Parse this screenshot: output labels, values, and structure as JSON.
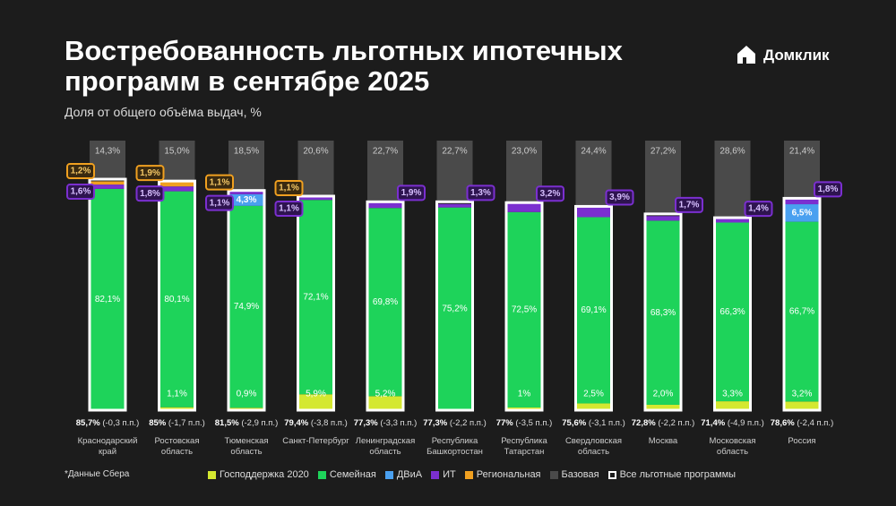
{
  "header": {
    "title": "Востребованность льготных ипотечных программ в сентябре 2025",
    "subtitle": "Доля от общего объёма выдач, %",
    "logo": "Домклик"
  },
  "footnote": "*Данные Сбера",
  "chart_data": {
    "type": "stacked-bar",
    "categories": [
      "Краснодарский край",
      "Ростовская область",
      "Тюменская область",
      "Санкт-Петербург",
      "Ленинградская область",
      "Республика Башкортостан",
      "Республика Татарстан",
      "Свердловская область",
      "Москва",
      "Московская область",
      "Россия"
    ],
    "ylim": [
      0,
      100
    ],
    "series": [
      {
        "name": "Господдержка 2020",
        "color": "#d4e830",
        "values": [
          null,
          1.1,
          0.9,
          5.9,
          5.2,
          null,
          1,
          2.5,
          2.0,
          3.3,
          3.2
        ],
        "value_labels": [
          null,
          "1,1%",
          "0,9%",
          "5,9%",
          "5,2%",
          null,
          "1%",
          "2,5%",
          "2,0%",
          "3,3%",
          "3,2%"
        ]
      },
      {
        "name": "Семейная",
        "color": "#1ed35a",
        "values": [
          82.1,
          80.1,
          74.9,
          72.1,
          69.8,
          75.2,
          72.5,
          69.1,
          68.3,
          66.3,
          66.7
        ],
        "value_labels": [
          "82,1%",
          "80,1%",
          "74,9%",
          "72,1%",
          "69,8%",
          "75,2%",
          "72,5%",
          "69,1%",
          "68,3%",
          "66,3%",
          "66,7%"
        ]
      },
      {
        "name": "ДВиА",
        "color": "#4aa0f0",
        "values": [
          null,
          null,
          4.3,
          null,
          null,
          null,
          null,
          null,
          null,
          null,
          6.5
        ],
        "value_labels": [
          null,
          null,
          "4,3%",
          null,
          null,
          null,
          null,
          null,
          null,
          null,
          "6,5%"
        ]
      },
      {
        "name": "ИТ",
        "color": "#7b2fd0",
        "values": [
          1.6,
          1.8,
          1.1,
          1.1,
          1.9,
          1.3,
          3.2,
          3.9,
          1.7,
          1.4,
          1.8
        ],
        "value_labels": [
          "1,6%",
          "1,8%",
          "1,1%",
          "1,1%",
          "1,9%",
          "1,3%",
          "3,2%",
          "3,9%",
          "1,7%",
          "1,4%",
          "1,8%"
        ]
      },
      {
        "name": "Региональная",
        "color": "#f0a020",
        "values": [
          1.2,
          1.9,
          1.1,
          1.1,
          null,
          null,
          null,
          null,
          null,
          null,
          null
        ],
        "value_labels": [
          "1,2%",
          "1,9%",
          "1,1%",
          "1,1%",
          null,
          null,
          null,
          null,
          null,
          null,
          null
        ]
      },
      {
        "name": "Базовая",
        "color": "#4a4a4a",
        "values": [
          14.3,
          15.0,
          18.5,
          20.6,
          22.7,
          22.7,
          23.0,
          24.4,
          27.2,
          28.6,
          21.4
        ],
        "value_labels": [
          "14,3%",
          "15,0%",
          "18,5%",
          "20,6%",
          "22,7%",
          "22,7%",
          "23,0%",
          "24,4%",
          "27,2%",
          "28,6%",
          "21,4%"
        ]
      }
    ],
    "total": {
      "name": "Все льготные программы",
      "color": "#ffffff",
      "values": [
        85.7,
        85,
        81.5,
        79.4,
        77.3,
        77.3,
        77,
        75.6,
        72.8,
        71.4,
        78.6
      ],
      "value_labels": [
        "85,7%",
        "85%",
        "81,5%",
        "79,4%",
        "77,3%",
        "77,3%",
        "77%",
        "75,6%",
        "72,8%",
        "71,4%",
        "78,6%"
      ],
      "changes": [
        "(-0,3 п.п.)",
        "(-1,7 п.п.)",
        "(-2,9 п.п.)",
        "(-3,8 п.п.)",
        "(-3,3 п.п.)",
        "(-2,2 п.п.)",
        "(-3,5 п.п.)",
        "(-3,1 п.п.)",
        "(-2,2 п.п.)",
        "(-4,9 п.п.)",
        "(-2,4 п.п.)"
      ]
    }
  }
}
